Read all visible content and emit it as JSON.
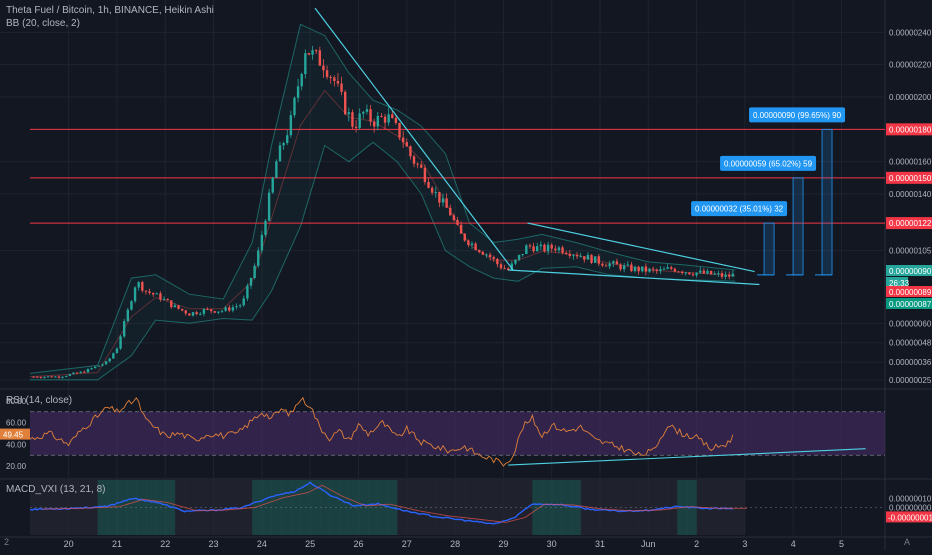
{
  "header": {
    "symbol_line": "Theta Fuel / Bitcoin, 1h, BINANCE, Heikin Ashi",
    "bb_label": "BB (20, close, 2)"
  },
  "colors": {
    "background": "#131722",
    "grid": "#1f2330",
    "up": "#26a69a",
    "down": "#ef5350",
    "trend": "#4dd0e1",
    "resistance": "#f23645",
    "rsi_line": "#e0803a",
    "rsi_band": "#4a2d6b",
    "macd_line": "#2962ff",
    "callout": "#2196f3"
  },
  "chart_data": [
    {
      "type": "candlestick",
      "title": "Theta Fuel / Bitcoin, 1h, BINANCE, Heikin Ashi",
      "indicator": "BB (20, close, 2)",
      "x_ticks": [
        "20",
        "21",
        "22",
        "23",
        "24",
        "25",
        "26",
        "27",
        "28",
        "29",
        "30",
        "31",
        "Jun",
        "2",
        "3",
        "4",
        "5"
      ],
      "y_ticks": [
        "0.00000240",
        "0.00000220",
        "0.00000200",
        "0.00000160",
        "0.00000140",
        "0.00000105",
        "0.00000060",
        "0.00000048",
        "0.00000036",
        "0.00000025"
      ],
      "ylim": [
        2e-07,
        2.6e-06
      ],
      "close_path": [
        {
          "x": 19.2,
          "y": 2.7e-07
        },
        {
          "x": 19.8,
          "y": 2.7e-07
        },
        {
          "x": 20.3,
          "y": 3e-07
        },
        {
          "x": 20.8,
          "y": 3.6e-07
        },
        {
          "x": 21.0,
          "y": 4.5e-07
        },
        {
          "x": 21.2,
          "y": 6.5e-07
        },
        {
          "x": 21.4,
          "y": 8.6e-07
        },
        {
          "x": 21.6,
          "y": 8e-07
        },
        {
          "x": 21.9,
          "y": 7.6e-07
        },
        {
          "x": 22.2,
          "y": 7e-07
        },
        {
          "x": 22.5,
          "y": 6.6e-07
        },
        {
          "x": 22.8,
          "y": 6.8e-07
        },
        {
          "x": 23.2,
          "y": 6.8e-07
        },
        {
          "x": 23.6,
          "y": 7.2e-07
        },
        {
          "x": 23.9,
          "y": 1e-06
        },
        {
          "x": 24.1,
          "y": 1.3e-06
        },
        {
          "x": 24.3,
          "y": 1.6e-06
        },
        {
          "x": 24.6,
          "y": 1.85e-06
        },
        {
          "x": 24.9,
          "y": 2.3e-06
        },
        {
          "x": 25.1,
          "y": 2.25e-06
        },
        {
          "x": 25.3,
          "y": 2.2e-06
        },
        {
          "x": 25.5,
          "y": 2.1e-06
        },
        {
          "x": 25.7,
          "y": 1.95e-06
        },
        {
          "x": 25.9,
          "y": 1.82e-06
        },
        {
          "x": 26.1,
          "y": 1.9e-06
        },
        {
          "x": 26.3,
          "y": 1.85e-06
        },
        {
          "x": 26.6,
          "y": 1.88e-06
        },
        {
          "x": 26.9,
          "y": 1.75e-06
        },
        {
          "x": 27.1,
          "y": 1.62e-06
        },
        {
          "x": 27.3,
          "y": 1.55e-06
        },
        {
          "x": 27.6,
          "y": 1.4e-06
        },
        {
          "x": 27.9,
          "y": 1.28e-06
        },
        {
          "x": 28.1,
          "y": 1.15e-06
        },
        {
          "x": 28.4,
          "y": 1.08e-06
        },
        {
          "x": 28.7,
          "y": 1.02e-06
        },
        {
          "x": 28.9,
          "y": 9.6e-07
        },
        {
          "x": 29.1,
          "y": 9.3e-07
        },
        {
          "x": 29.3,
          "y": 1e-06
        },
        {
          "x": 29.5,
          "y": 1.08e-06
        },
        {
          "x": 29.8,
          "y": 1.06e-06
        },
        {
          "x": 30.1,
          "y": 1.07e-06
        },
        {
          "x": 30.4,
          "y": 1.04e-06
        },
        {
          "x": 30.7,
          "y": 1.01e-06
        },
        {
          "x": 31.0,
          "y": 9.8e-07
        },
        {
          "x": 31.3,
          "y": 9.6e-07
        },
        {
          "x": 31.6,
          "y": 9.4e-07
        },
        {
          "x": 31.9,
          "y": 9.3e-07
        },
        {
          "x": 32.2,
          "y": 9.2e-07
        },
        {
          "x": 32.5,
          "y": 9.4e-07
        },
        {
          "x": 32.8,
          "y": 9.2e-07
        },
        {
          "x": 33.1,
          "y": 9.1e-07
        },
        {
          "x": 33.4,
          "y": 9e-07
        },
        {
          "x": 33.6,
          "y": 8.9e-07
        },
        {
          "x": 33.8,
          "y": 9e-07
        }
      ],
      "bb_upper": [
        {
          "x": 19.2,
          "y": 2.9e-07
        },
        {
          "x": 20.6,
          "y": 3.4e-07
        },
        {
          "x": 21.3,
          "y": 8.8e-07
        },
        {
          "x": 21.8,
          "y": 9e-07
        },
        {
          "x": 22.5,
          "y": 7.8e-07
        },
        {
          "x": 23.2,
          "y": 7.5e-07
        },
        {
          "x": 23.8,
          "y": 1.1e-06
        },
        {
          "x": 24.2,
          "y": 1.7e-06
        },
        {
          "x": 24.8,
          "y": 2.45e-06
        },
        {
          "x": 25.3,
          "y": 2.38e-06
        },
        {
          "x": 25.8,
          "y": 2.15e-06
        },
        {
          "x": 26.3,
          "y": 1.98e-06
        },
        {
          "x": 26.8,
          "y": 1.92e-06
        },
        {
          "x": 27.3,
          "y": 1.82e-06
        },
        {
          "x": 27.8,
          "y": 1.65e-06
        },
        {
          "x": 28.3,
          "y": 1.22e-06
        },
        {
          "x": 28.8,
          "y": 1.1e-06
        },
        {
          "x": 29.3,
          "y": 1.12e-06
        },
        {
          "x": 29.8,
          "y": 1.15e-06
        },
        {
          "x": 30.5,
          "y": 1.1e-06
        },
        {
          "x": 31.2,
          "y": 1.04e-06
        },
        {
          "x": 32.0,
          "y": 9.8e-07
        },
        {
          "x": 32.8,
          "y": 9.6e-07
        },
        {
          "x": 33.8,
          "y": 9.3e-07
        }
      ],
      "bb_lower": [
        {
          "x": 19.2,
          "y": 2.5e-07
        },
        {
          "x": 20.6,
          "y": 2.5e-07
        },
        {
          "x": 21.3,
          "y": 4e-07
        },
        {
          "x": 21.8,
          "y": 6.2e-07
        },
        {
          "x": 22.5,
          "y": 6e-07
        },
        {
          "x": 23.2,
          "y": 6.3e-07
        },
        {
          "x": 23.8,
          "y": 6.2e-07
        },
        {
          "x": 24.2,
          "y": 8e-07
        },
        {
          "x": 24.8,
          "y": 1.2e-06
        },
        {
          "x": 25.3,
          "y": 1.7e-06
        },
        {
          "x": 25.8,
          "y": 1.6e-06
        },
        {
          "x": 26.3,
          "y": 1.72e-06
        },
        {
          "x": 26.8,
          "y": 1.6e-06
        },
        {
          "x": 27.3,
          "y": 1.4e-06
        },
        {
          "x": 27.8,
          "y": 1.05e-06
        },
        {
          "x": 28.3,
          "y": 9.5e-07
        },
        {
          "x": 28.8,
          "y": 8.8e-07
        },
        {
          "x": 29.3,
          "y": 8.6e-07
        },
        {
          "x": 29.8,
          "y": 9.4e-07
        },
        {
          "x": 30.5,
          "y": 9.5e-07
        },
        {
          "x": 31.2,
          "y": 9e-07
        },
        {
          "x": 32.0,
          "y": 8.8e-07
        },
        {
          "x": 32.8,
          "y": 8.7e-07
        },
        {
          "x": 33.8,
          "y": 8.6e-07
        }
      ],
      "trendlines": [
        {
          "x1": 25.1,
          "y1": 2.55e-06,
          "x2": 29.2,
          "y2": 9.3e-07
        },
        {
          "x1": 29.5,
          "y1": 1.22e-06,
          "x2": 34.2,
          "y2": 9.2e-07
        },
        {
          "x1": 29.1,
          "y1": 9.3e-07,
          "x2": 34.3,
          "y2": 8.4e-07
        }
      ],
      "resistance_levels": [
        "0.00000180",
        "0.00000150",
        "0.00000122"
      ],
      "price_labels": [
        {
          "text": "0.00000090",
          "kind": "current"
        },
        {
          "text": "26:33",
          "kind": "countdown"
        },
        {
          "text": "0.00000089",
          "kind": "down"
        },
        {
          "text": "0.00000087",
          "kind": "up"
        }
      ],
      "projections": [
        {
          "label": "0.00000032 (35.01%) 32",
          "x": 34.5,
          "top": 1.22e-06
        },
        {
          "label": "0.00000059 (65.02%) 59",
          "x": 35.1,
          "top": 1.5e-06
        },
        {
          "label": "0.00000090 (99.65%) 90",
          "x": 35.7,
          "top": 1.8e-06
        }
      ],
      "projection_base": 9e-07
    },
    {
      "type": "line",
      "title": "RSI (14, close)",
      "y_ticks": [
        "80.00",
        "60.00",
        "40.00",
        "20.00"
      ],
      "current_label": "49.45",
      "ylim": [
        10,
        90
      ],
      "band": [
        30,
        70
      ],
      "series": [
        {
          "x": 19.2,
          "y": 45
        },
        {
          "x": 19.6,
          "y": 50
        },
        {
          "x": 20.0,
          "y": 40
        },
        {
          "x": 20.3,
          "y": 55
        },
        {
          "x": 20.6,
          "y": 66
        },
        {
          "x": 20.8,
          "y": 74
        },
        {
          "x": 21.0,
          "y": 70
        },
        {
          "x": 21.2,
          "y": 76
        },
        {
          "x": 21.4,
          "y": 82
        },
        {
          "x": 21.6,
          "y": 62
        },
        {
          "x": 21.8,
          "y": 55
        },
        {
          "x": 22.0,
          "y": 48
        },
        {
          "x": 22.3,
          "y": 50
        },
        {
          "x": 22.6,
          "y": 44
        },
        {
          "x": 22.9,
          "y": 50
        },
        {
          "x": 23.2,
          "y": 48
        },
        {
          "x": 23.5,
          "y": 50
        },
        {
          "x": 23.8,
          "y": 62
        },
        {
          "x": 24.0,
          "y": 70
        },
        {
          "x": 24.2,
          "y": 64
        },
        {
          "x": 24.4,
          "y": 72
        },
        {
          "x": 24.6,
          "y": 68
        },
        {
          "x": 24.8,
          "y": 82
        },
        {
          "x": 25.0,
          "y": 76
        },
        {
          "x": 25.2,
          "y": 56
        },
        {
          "x": 25.4,
          "y": 46
        },
        {
          "x": 25.6,
          "y": 52
        },
        {
          "x": 25.8,
          "y": 44
        },
        {
          "x": 26.0,
          "y": 58
        },
        {
          "x": 26.2,
          "y": 50
        },
        {
          "x": 26.5,
          "y": 60
        },
        {
          "x": 26.8,
          "y": 46
        },
        {
          "x": 27.0,
          "y": 54
        },
        {
          "x": 27.3,
          "y": 42
        },
        {
          "x": 27.6,
          "y": 38
        },
        {
          "x": 27.9,
          "y": 34
        },
        {
          "x": 28.2,
          "y": 38
        },
        {
          "x": 28.5,
          "y": 30
        },
        {
          "x": 28.8,
          "y": 26
        },
        {
          "x": 29.0,
          "y": 22
        },
        {
          "x": 29.2,
          "y": 30
        },
        {
          "x": 29.4,
          "y": 56
        },
        {
          "x": 29.6,
          "y": 64
        },
        {
          "x": 29.8,
          "y": 48
        },
        {
          "x": 30.0,
          "y": 58
        },
        {
          "x": 30.3,
          "y": 52
        },
        {
          "x": 30.6,
          "y": 56
        },
        {
          "x": 30.9,
          "y": 44
        },
        {
          "x": 31.2,
          "y": 40
        },
        {
          "x": 31.5,
          "y": 36
        },
        {
          "x": 31.8,
          "y": 30
        },
        {
          "x": 32.1,
          "y": 34
        },
        {
          "x": 32.4,
          "y": 58
        },
        {
          "x": 32.7,
          "y": 50
        },
        {
          "x": 33.0,
          "y": 46
        },
        {
          "x": 33.3,
          "y": 36
        },
        {
          "x": 33.6,
          "y": 40
        },
        {
          "x": 33.8,
          "y": 49
        }
      ],
      "trendline": {
        "x1": 29.1,
        "y1": 21,
        "x2": 36.5,
        "y2": 36
      }
    },
    {
      "type": "line",
      "title": "MACD_VXI (13, 21, 8)",
      "y_ticks": [
        "0.00000010",
        "0.00000000"
      ],
      "current_label": "-0.00000001",
      "ylim": [
        -3e-07,
        3e-07
      ],
      "series": [
        {
          "x": 19.2,
          "y": -2e-08
        },
        {
          "x": 20.0,
          "y": -1e-08
        },
        {
          "x": 20.8,
          "y": 1e-08
        },
        {
          "x": 21.3,
          "y": 1e-07
        },
        {
          "x": 21.8,
          "y": 6e-08
        },
        {
          "x": 22.4,
          "y": -4e-08
        },
        {
          "x": 23.0,
          "y": -3e-08
        },
        {
          "x": 23.6,
          "y": 0.0
        },
        {
          "x": 24.2,
          "y": 1.2e-07
        },
        {
          "x": 24.7,
          "y": 1.8e-07
        },
        {
          "x": 25.0,
          "y": 2.7e-07
        },
        {
          "x": 25.4,
          "y": 1.4e-07
        },
        {
          "x": 25.9,
          "y": 2e-08
        },
        {
          "x": 26.4,
          "y": 4e-08
        },
        {
          "x": 27.0,
          "y": -4e-08
        },
        {
          "x": 27.6,
          "y": -1e-07
        },
        {
          "x": 28.2,
          "y": -1.4e-07
        },
        {
          "x": 28.8,
          "y": -1.8e-07
        },
        {
          "x": 29.2,
          "y": -1.2e-07
        },
        {
          "x": 29.6,
          "y": 4e-08
        },
        {
          "x": 30.2,
          "y": 3e-08
        },
        {
          "x": 30.8,
          "y": -2e-08
        },
        {
          "x": 31.4,
          "y": -4e-08
        },
        {
          "x": 32.0,
          "y": -3e-08
        },
        {
          "x": 32.6,
          "y": 1e-08
        },
        {
          "x": 33.2,
          "y": -1e-08
        },
        {
          "x": 33.8,
          "y": -1e-08
        }
      ]
    }
  ],
  "corner_labels": {
    "bottom_left": "2",
    "bottom_right": "A"
  }
}
